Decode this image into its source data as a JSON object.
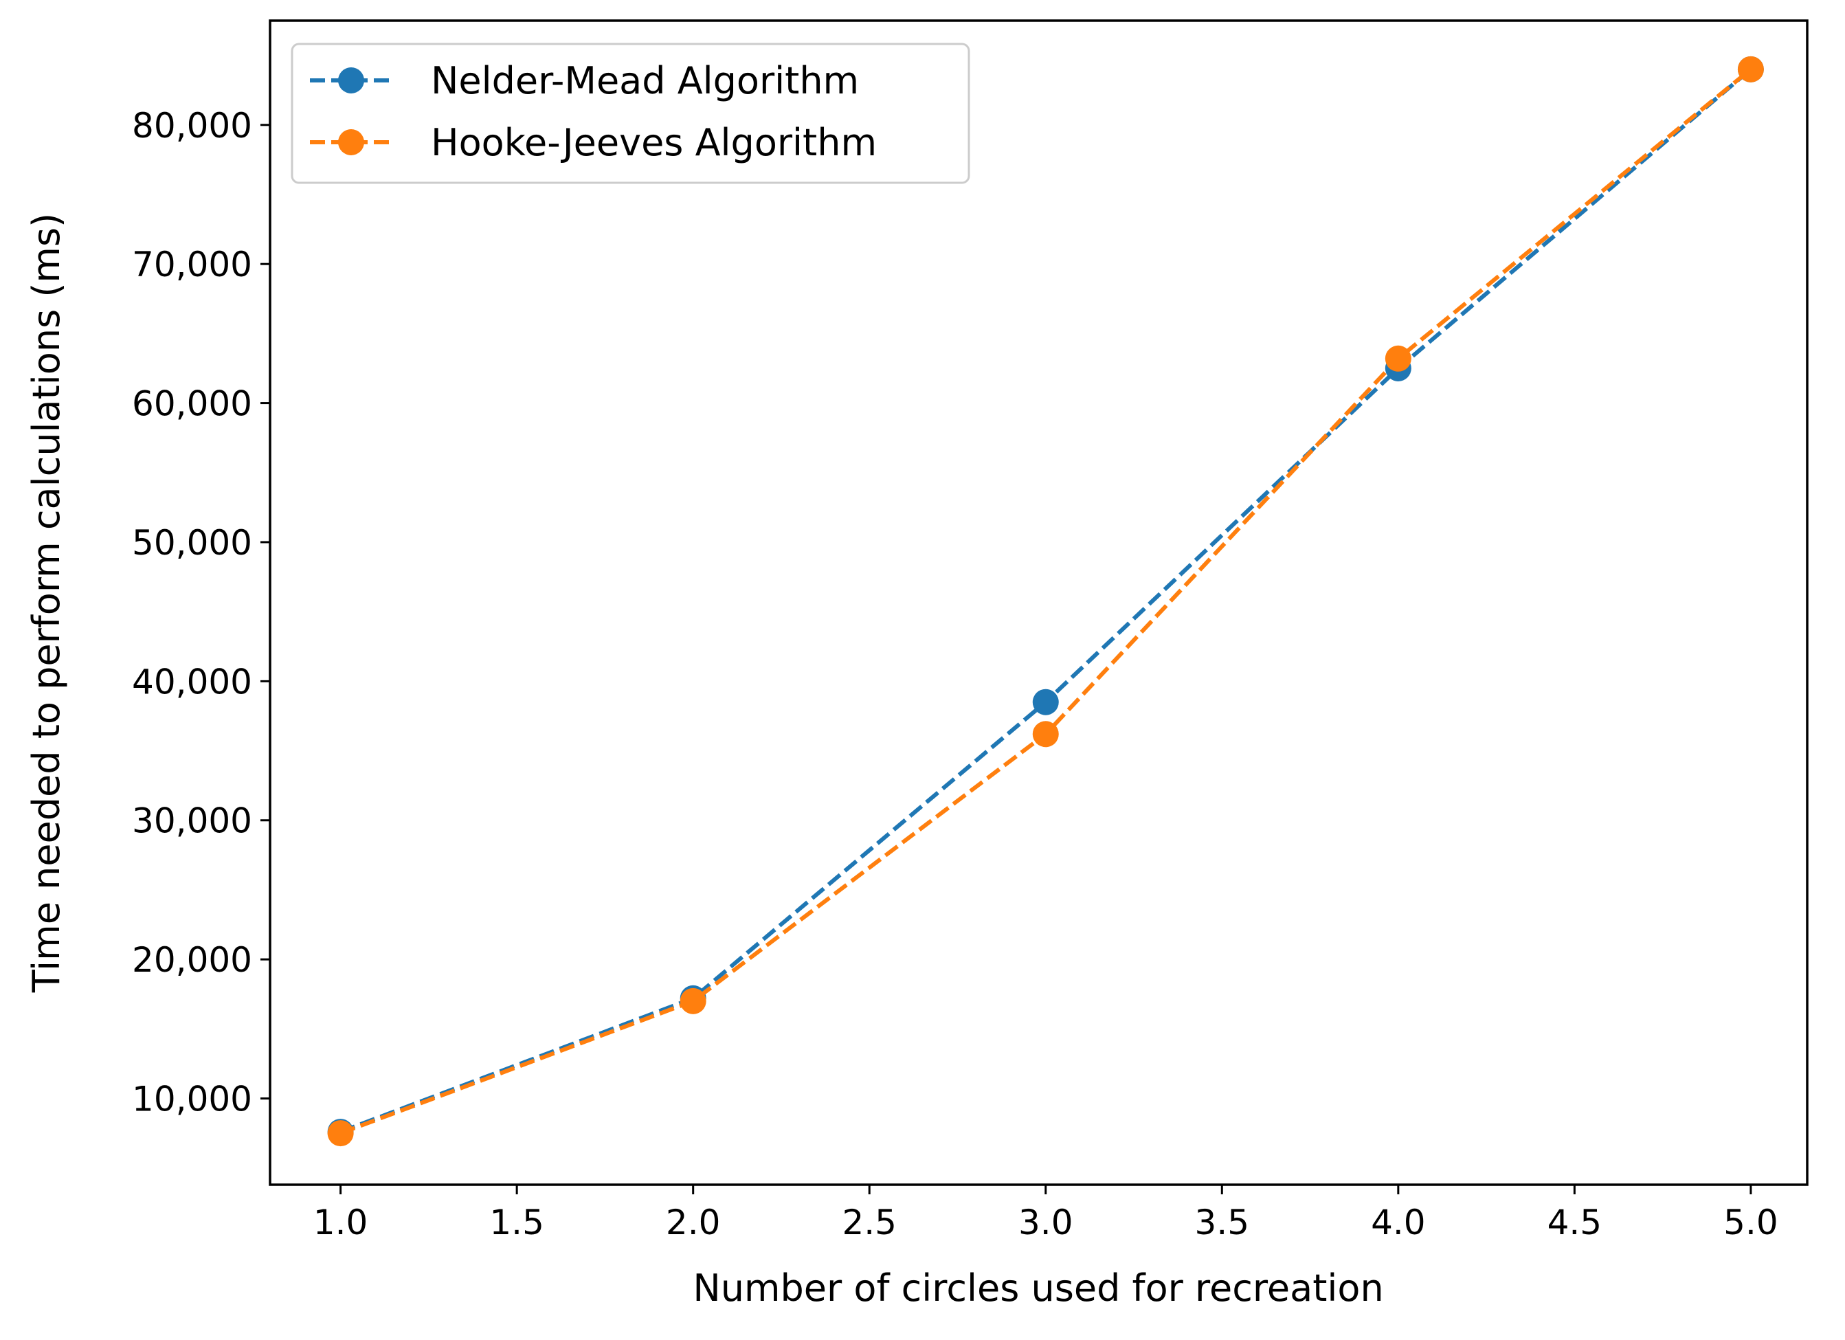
{
  "chart_data": {
    "type": "line",
    "title": "",
    "xlabel": "Number of circles used for recreation",
    "ylabel": "Time needed to perform calculations (ms)",
    "xlim": [
      0.8,
      5.16
    ],
    "ylim": [
      3800,
      87500
    ],
    "x_ticks": [
      1.0,
      1.5,
      2.0,
      2.5,
      3.0,
      3.5,
      4.0,
      4.5,
      5.0
    ],
    "x_tick_labels": [
      "1.0",
      "1.5",
      "2.0",
      "2.5",
      "3.0",
      "3.5",
      "4.0",
      "4.5",
      "5.0"
    ],
    "y_ticks": [
      10000,
      20000,
      30000,
      40000,
      50000,
      60000,
      70000,
      80000
    ],
    "y_tick_labels": [
      "10,000",
      "20,000",
      "30,000",
      "40,000",
      "50,000",
      "60,000",
      "70,000",
      "80,000"
    ],
    "legend_position": "top-left",
    "series": [
      {
        "name": "Nelder-Mead Algorithm",
        "color": "#1f77b4",
        "x": [
          1,
          2,
          3,
          4,
          5
        ],
        "y": [
          7600,
          17200,
          38500,
          62500,
          84000
        ]
      },
      {
        "name": "Hooke-Jeeves Algorithm",
        "color": "#ff7f0e",
        "x": [
          1,
          2,
          3,
          4,
          5
        ],
        "y": [
          7500,
          17000,
          36200,
          63200,
          84000
        ]
      }
    ]
  }
}
